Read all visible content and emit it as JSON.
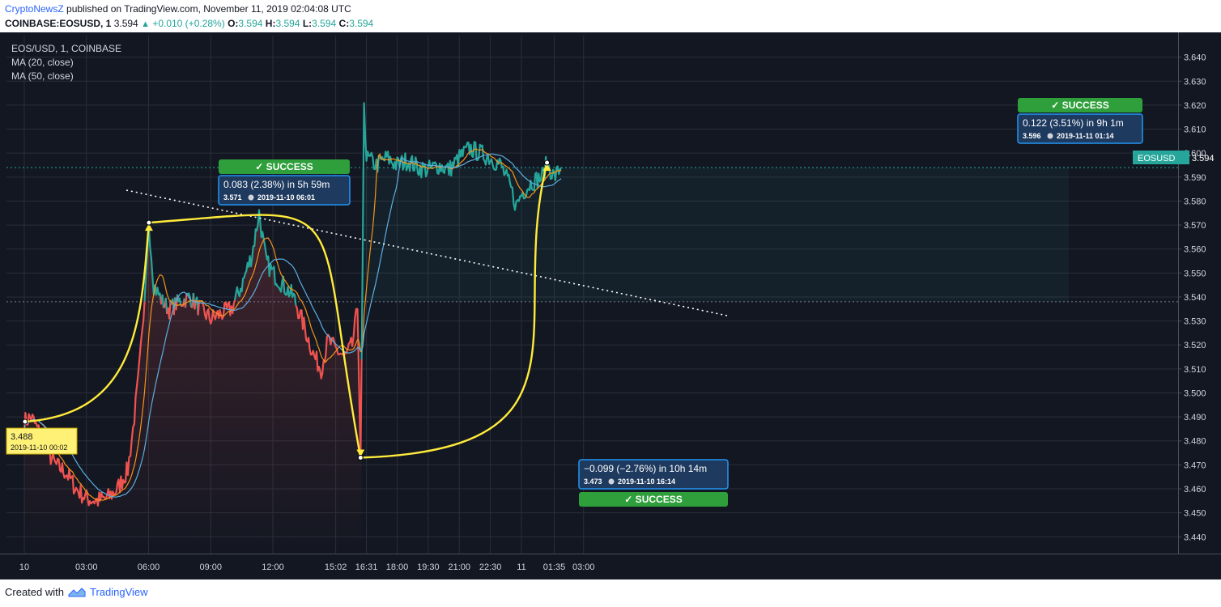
{
  "header": {
    "publisher": "CryptoNewsZ",
    "published_text": "published on TradingView.com, November 11, 2019 02:04:08 UTC",
    "symbol": "COINBASE:EOSUSD, 1",
    "last": "3.594",
    "change": "+0.010 (+0.28%)",
    "o_label": "O:",
    "o": "3.594",
    "h_label": "H:",
    "h": "3.594",
    "l_label": "L:",
    "l": "3.594",
    "c_label": "C:",
    "c": "3.594"
  },
  "legend": {
    "title": "EOS/USD, 1, COINBASE",
    "ma20": "MA (20, close)",
    "ma50": "MA (50, close)"
  },
  "price_tag": {
    "symbol": "EOSUSD",
    "value": "3.594"
  },
  "footer": {
    "created_with": "Created with",
    "tv": "TradingView"
  },
  "colors": {
    "background": "#131722",
    "grid": "#2a2e39",
    "axis_text": "#d1d4dc",
    "price_up": "#26a69a",
    "price_down": "#ef5350",
    "ma20": "#f7931a",
    "ma50": "#5dade2",
    "annotation": "#ffeb3b",
    "callout_border": "#2196f3",
    "success": "#2e9f3a"
  },
  "annotations": {
    "start_point": {
      "value": "3.488",
      "time": "2019-11-10 00:02"
    },
    "callouts": [
      {
        "title": "0.083 (2.38%) in 5h 59m",
        "price": "3.571",
        "time": "2019-11-10  06:01",
        "badge": "✓ SUCCESS"
      },
      {
        "title": "−0.099 (−2.76%) in 10h 14m",
        "price": "3.473",
        "time": "2019-11-10  16:14",
        "badge": "✓ SUCCESS"
      },
      {
        "title": "0.122 (3.51%) in 9h 1m",
        "price": "3.596",
        "time": "2019-11-11  01:14",
        "badge": "✓ SUCCESS"
      }
    ]
  },
  "chart_data": {
    "type": "line",
    "title": "EOS/USD, 1, COINBASE",
    "xlabel": "",
    "ylabel": "",
    "x_ticks": [
      "10",
      "03:00",
      "06:00",
      "09:00",
      "12:00",
      "15:02",
      "16:31",
      "18:00",
      "19:30",
      "21:00",
      "22:30",
      "11",
      "01:35",
      "03:00"
    ],
    "y_ticks": [
      3.44,
      3.45,
      3.46,
      3.47,
      3.48,
      3.49,
      3.5,
      3.51,
      3.52,
      3.53,
      3.54,
      3.55,
      3.56,
      3.57,
      3.58,
      3.59,
      3.6,
      3.61,
      3.62,
      3.63,
      3.64
    ],
    "ylim": [
      3.433,
      3.649
    ],
    "grid": true,
    "series": [
      {
        "name": "EOS/USD",
        "points": [
          [
            "00:00",
            3.488
          ],
          [
            "00:20",
            3.49
          ],
          [
            "00:45",
            3.483
          ],
          [
            "01:10",
            3.475
          ],
          [
            "01:30",
            3.47
          ],
          [
            "02:00",
            3.467
          ],
          [
            "02:30",
            3.46
          ],
          [
            "03:00",
            3.456
          ],
          [
            "03:30",
            3.455
          ],
          [
            "04:00",
            3.456
          ],
          [
            "04:30",
            3.46
          ],
          [
            "05:00",
            3.468
          ],
          [
            "05:15",
            3.485
          ],
          [
            "05:30",
            3.505
          ],
          [
            "05:45",
            3.53
          ],
          [
            "06:01",
            3.571
          ],
          [
            "06:15",
            3.545
          ],
          [
            "06:40",
            3.538
          ],
          [
            "07:00",
            3.535
          ],
          [
            "07:30",
            3.538
          ],
          [
            "08:00",
            3.54
          ],
          [
            "08:30",
            3.535
          ],
          [
            "09:00",
            3.531
          ],
          [
            "09:30",
            3.533
          ],
          [
            "10:00",
            3.535
          ],
          [
            "10:30",
            3.545
          ],
          [
            "11:00",
            3.558
          ],
          [
            "11:20",
            3.575
          ],
          [
            "11:40",
            3.555
          ],
          [
            "12:00",
            3.55
          ],
          [
            "12:30",
            3.545
          ],
          [
            "13:00",
            3.54
          ],
          [
            "13:30",
            3.528
          ],
          [
            "14:00",
            3.515
          ],
          [
            "14:20",
            3.51
          ],
          [
            "14:40",
            3.522
          ],
          [
            "15:02",
            3.518
          ],
          [
            "15:30",
            3.515
          ],
          [
            "15:50",
            3.52
          ],
          [
            "16:05",
            3.535
          ],
          [
            "16:14",
            3.473
          ],
          [
            "16:20",
            3.555
          ],
          [
            "16:24",
            3.622
          ],
          [
            "16:31",
            3.598
          ],
          [
            "17:00",
            3.595
          ],
          [
            "17:30",
            3.598
          ],
          [
            "18:00",
            3.595
          ],
          [
            "18:30",
            3.597
          ],
          [
            "19:00",
            3.594
          ],
          [
            "19:30",
            3.593
          ],
          [
            "20:00",
            3.595
          ],
          [
            "20:30",
            3.593
          ],
          [
            "21:00",
            3.598
          ],
          [
            "21:30",
            3.602
          ],
          [
            "22:00",
            3.6
          ],
          [
            "22:30",
            3.598
          ],
          [
            "23:00",
            3.595
          ],
          [
            "23:30",
            3.585
          ],
          [
            "23:45",
            3.578
          ],
          [
            "00:00",
            3.583
          ],
          [
            "00:30",
            3.588
          ],
          [
            "01:00",
            3.59
          ],
          [
            "01:14",
            3.596
          ],
          [
            "01:35",
            3.59
          ],
          [
            "01:55",
            3.594
          ]
        ]
      },
      {
        "name": "MA (20, close)"
      },
      {
        "name": "MA (50, close)"
      }
    ]
  }
}
